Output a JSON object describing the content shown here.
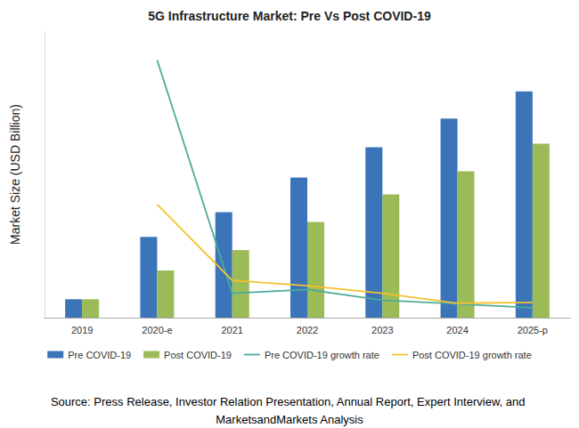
{
  "chart_data": {
    "type": "bar",
    "title": "5G Infrastructure Market: Pre Vs Post COVID-19",
    "y_label": "Market Size (USD Billion)",
    "annotations": [
      "Source: Press Release, Investor Relation Presentation, Annual Report, Expert Interview, and MarketsandMarkets Analysis"
    ],
    "categories": [
      "2019",
      "2020-e",
      "2021",
      "2022",
      "2023",
      "2024",
      "2025-p"
    ],
    "series": [
      {
        "name": "Pre COVID-19",
        "type": "bar",
        "color": "#3b74b8",
        "values": [
          3.6,
          15.8,
          20.6,
          27.4,
          33.3,
          38.9,
          44.2
        ]
      },
      {
        "name": "Post COVID-19",
        "type": "bar",
        "color": "#9bbb59",
        "values": [
          3.6,
          9.2,
          13.2,
          18.7,
          24.1,
          28.6,
          34.0
        ]
      },
      {
        "name": "Pre COVID-19 growth rate",
        "type": "line",
        "axis": "y2",
        "color": "#4bab9c",
        "marker": "none",
        "line_style": "solid",
        "values": [
          null,
          339,
          32,
          37,
          23,
          18,
          13
        ]
      },
      {
        "name": "Post COVID-19 growth rate",
        "type": "line",
        "axis": "y2",
        "color": "#f5c12e",
        "marker": "none",
        "line_style": "solid",
        "values": [
          null,
          149,
          49,
          42,
          32,
          19,
          20
        ]
      }
    ],
    "ylim": [
      0,
      56
    ],
    "y2lim": [
      0,
      377
    ],
    "grid": false,
    "legend": "bottom",
    "tick_labels": "x"
  }
}
